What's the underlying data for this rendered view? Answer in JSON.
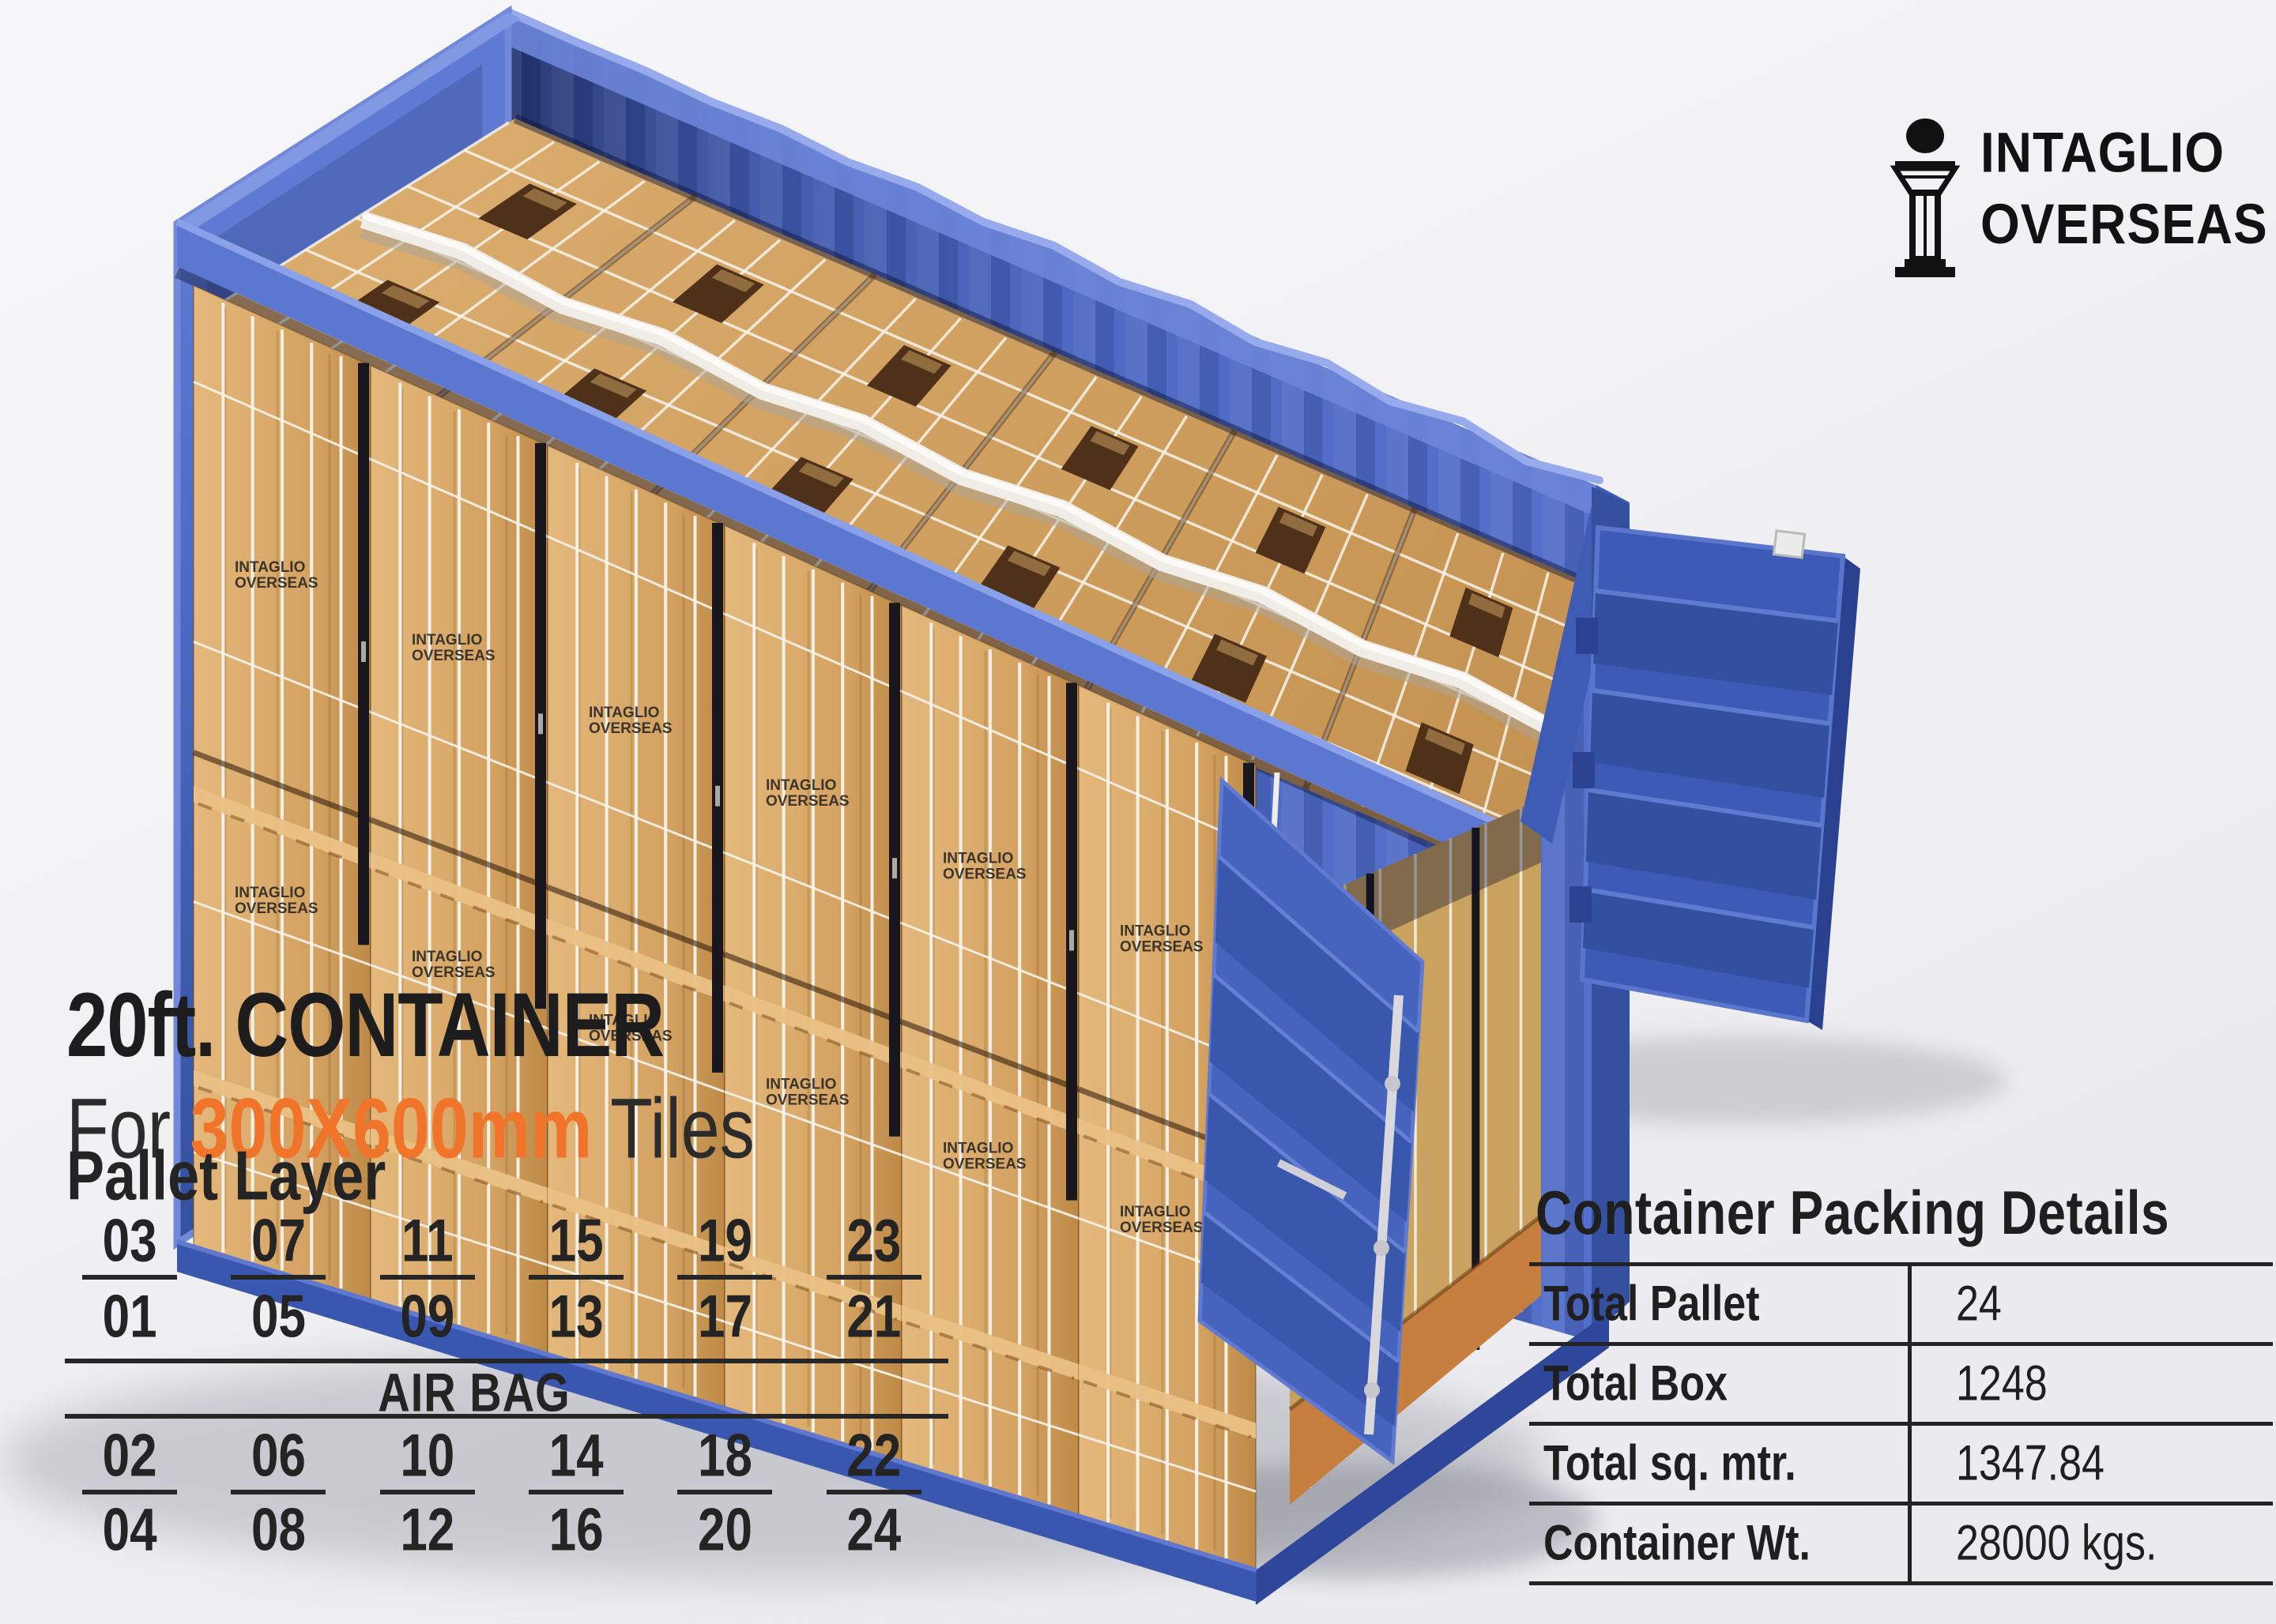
{
  "logo": {
    "line1": "INTAGLIO",
    "line2": "OVERSEAS"
  },
  "title": {
    "line1": "20ft. CONTAINER",
    "line2_prefix": "For ",
    "line2_highlight": "300X600mm",
    "line2_suffix": " Tiles"
  },
  "pallet_layer": {
    "heading": "Pallet Layer",
    "airbag_label": "AIR BAG",
    "top_rows": [
      [
        "03",
        "07",
        "11",
        "15",
        "19",
        "23"
      ],
      [
        "01",
        "05",
        "09",
        "13",
        "17",
        "21"
      ]
    ],
    "bottom_rows": [
      [
        "02",
        "06",
        "10",
        "14",
        "18",
        "22"
      ],
      [
        "04",
        "08",
        "12",
        "16",
        "20",
        "24"
      ]
    ]
  },
  "packing_details": {
    "title": "Container Packing Details",
    "rows": [
      {
        "label": "Total Pallet",
        "value": "24"
      },
      {
        "label": "Total Box",
        "value": "1248"
      },
      {
        "label": "Total sq. mtr.",
        "value": "1347.84"
      },
      {
        "label": "Container Wt.",
        "value": "28000 kgs."
      }
    ]
  },
  "illustration": {
    "box_label_line1": "INTAGLIO",
    "box_label_line2": "OVERSEAS"
  },
  "colors": {
    "accent_orange": "#F0752B",
    "container_blue": "#4A67C4",
    "wood_light": "#E2B377",
    "wood_dark": "#C08C4A",
    "strap_white": "#F6F3EA",
    "text_dark": "#1D1D1D"
  }
}
